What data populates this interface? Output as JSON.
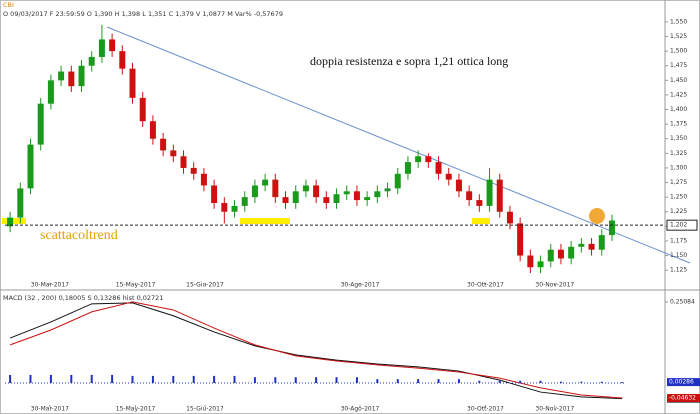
{
  "chart_data": [
    {
      "type": "candlestick",
      "symbol": "CBI",
      "info": "O 09/03/2017 F 23:59:59 O 1,390 H 1,398 L 1,351 C 1,379 V 1,0877 M Var% -0,57679",
      "annotations": [
        "doppia resistenza e sopra 1,21 ottica long",
        "scattacoltrend"
      ],
      "up_color": "#1a9a1a",
      "down_color": "#d01010",
      "candles": [
        [
          1.2,
          1.225,
          1.19,
          1.215
        ],
        [
          1.215,
          1.275,
          1.205,
          1.265
        ],
        [
          1.265,
          1.35,
          1.255,
          1.34
        ],
        [
          1.34,
          1.42,
          1.33,
          1.41
        ],
        [
          1.41,
          1.46,
          1.4,
          1.45
        ],
        [
          1.45,
          1.475,
          1.44,
          1.465
        ],
        [
          1.465,
          1.475,
          1.43,
          1.44
        ],
        [
          1.44,
          1.485,
          1.43,
          1.475
        ],
        [
          1.475,
          1.5,
          1.465,
          1.49
        ],
        [
          1.49,
          1.545,
          1.48,
          1.52
        ],
        [
          1.52,
          1.53,
          1.49,
          1.5
        ],
        [
          1.5,
          1.51,
          1.46,
          1.47
        ],
        [
          1.47,
          1.48,
          1.41,
          1.42
        ],
        [
          1.42,
          1.43,
          1.37,
          1.38
        ],
        [
          1.38,
          1.39,
          1.34,
          1.35
        ],
        [
          1.35,
          1.36,
          1.32,
          1.33
        ],
        [
          1.33,
          1.34,
          1.31,
          1.32
        ],
        [
          1.32,
          1.33,
          1.29,
          1.3
        ],
        [
          1.3,
          1.31,
          1.28,
          1.29
        ],
        [
          1.29,
          1.3,
          1.26,
          1.27
        ],
        [
          1.27,
          1.28,
          1.23,
          1.24
        ],
        [
          1.24,
          1.25,
          1.205,
          1.225
        ],
        [
          1.225,
          1.245,
          1.215,
          1.235
        ],
        [
          1.235,
          1.26,
          1.225,
          1.25
        ],
        [
          1.25,
          1.28,
          1.24,
          1.27
        ],
        [
          1.27,
          1.29,
          1.26,
          1.28
        ],
        [
          1.28,
          1.29,
          1.24,
          1.25
        ],
        [
          1.25,
          1.26,
          1.23,
          1.24
        ],
        [
          1.24,
          1.27,
          1.23,
          1.26
        ],
        [
          1.26,
          1.28,
          1.25,
          1.27
        ],
        [
          1.27,
          1.28,
          1.24,
          1.25
        ],
        [
          1.25,
          1.26,
          1.23,
          1.24
        ],
        [
          1.24,
          1.265,
          1.23,
          1.255
        ],
        [
          1.255,
          1.27,
          1.245,
          1.26
        ],
        [
          1.26,
          1.27,
          1.235,
          1.245
        ],
        [
          1.245,
          1.26,
          1.235,
          1.25
        ],
        [
          1.25,
          1.27,
          1.24,
          1.26
        ],
        [
          1.26,
          1.275,
          1.25,
          1.265
        ],
        [
          1.265,
          1.3,
          1.255,
          1.29
        ],
        [
          1.29,
          1.32,
          1.28,
          1.31
        ],
        [
          1.31,
          1.33,
          1.3,
          1.32
        ],
        [
          1.32,
          1.325,
          1.3,
          1.31
        ],
        [
          1.31,
          1.32,
          1.28,
          1.29
        ],
        [
          1.29,
          1.3,
          1.27,
          1.28
        ],
        [
          1.28,
          1.29,
          1.25,
          1.26
        ],
        [
          1.26,
          1.27,
          1.235,
          1.245
        ],
        [
          1.245,
          1.255,
          1.225,
          1.235
        ],
        [
          1.235,
          1.3,
          1.225,
          1.28
        ],
        [
          1.28,
          1.29,
          1.215,
          1.225
        ],
        [
          1.225,
          1.235,
          1.195,
          1.205
        ],
        [
          1.205,
          1.215,
          1.14,
          1.15
        ],
        [
          1.15,
          1.16,
          1.12,
          1.13
        ],
        [
          1.13,
          1.15,
          1.12,
          1.14
        ],
        [
          1.14,
          1.17,
          1.13,
          1.16
        ],
        [
          1.16,
          1.17,
          1.135,
          1.145
        ],
        [
          1.145,
          1.175,
          1.135,
          1.165
        ],
        [
          1.165,
          1.18,
          1.155,
          1.17
        ],
        [
          1.17,
          1.18,
          1.15,
          1.16
        ],
        [
          1.16,
          1.195,
          1.15,
          1.185
        ],
        [
          1.185,
          1.22,
          1.175,
          1.21
        ]
      ],
      "xlim": [
        -0.5,
        64.2
      ],
      "xticks": [
        {
          "value": 3.9,
          "label": "30-Mar-2017"
        },
        {
          "value": 12.3,
          "label": "15-May-2017"
        },
        {
          "value": 19.1,
          "label": "15-Giu-2017"
        },
        {
          "value": 34.3,
          "label": "30-Ago-2017"
        },
        {
          "value": 46.6,
          "label": "30-Ott-2017"
        },
        {
          "value": 53.4,
          "label": "30-Nov-2017"
        }
      ],
      "ylim": [
        1.103,
        1.567
      ],
      "yticks": [
        {
          "value": 1.125,
          "label": "1,125"
        },
        {
          "value": 1.15,
          "label": "1,150"
        },
        {
          "value": 1.175,
          "label": "1,175"
        },
        {
          "value": 1.2,
          "label": "1,200"
        },
        {
          "value": 1.225,
          "label": "1,225"
        },
        {
          "value": 1.25,
          "label": "1,250"
        },
        {
          "value": 1.275,
          "label": "1,275"
        },
        {
          "value": 1.3,
          "label": "1,300"
        },
        {
          "value": 1.325,
          "label": "1,325"
        },
        {
          "value": 1.35,
          "label": "1,350"
        },
        {
          "value": 1.375,
          "label": "1,375"
        },
        {
          "value": 1.4,
          "label": "1,400"
        },
        {
          "value": 1.425,
          "label": "1,425"
        },
        {
          "value": 1.45,
          "label": "1,450"
        },
        {
          "value": 1.475,
          "label": "1,475"
        },
        {
          "value": 1.5,
          "label": "1,500"
        },
        {
          "value": 1.525,
          "label": "1,525"
        },
        {
          "value": 1.55,
          "label": "1,550"
        }
      ],
      "level": {
        "value": 1.202,
        "label": "1,202"
      }
    },
    {
      "type": "line",
      "header": "MACD (32 , 200) 0,18005 S 0,13286 hist 0,02721",
      "x": [
        0,
        4,
        8,
        12,
        16,
        20,
        24,
        28,
        32,
        36,
        40,
        44,
        48,
        52,
        56,
        60
      ],
      "series": [
        {
          "color": "#111111",
          "values": [
            0.139,
            0.189,
            0.245,
            0.248,
            0.208,
            0.158,
            0.115,
            0.087,
            0.071,
            0.059,
            0.05,
            0.037,
            0.009,
            -0.028,
            -0.043,
            -0.0482
          ],
          "end_label": "-0,04820"
        },
        {
          "color": "#cc1111",
          "values": [
            0.118,
            0.164,
            0.22,
            0.251,
            0.226,
            0.17,
            0.118,
            0.084,
            0.068,
            0.056,
            0.046,
            0.034,
            0.015,
            -0.015,
            -0.037,
            -0.04632
          ],
          "end_label": "-0,04632"
        },
        {
          "kind": "bar",
          "color": "#2030c0",
          "x": [
            0,
            2,
            4,
            6,
            8,
            10,
            12,
            14,
            16,
            18,
            20,
            22,
            24,
            26,
            28,
            30,
            32,
            34,
            36,
            38,
            40,
            42,
            44,
            46,
            48,
            50,
            52,
            54,
            56,
            58,
            60
          ],
          "values": [
            0.025,
            0.025,
            0.025,
            0.025,
            0.025,
            0.025,
            0.022,
            0.022,
            0.022,
            0.022,
            0.022,
            0.022,
            0.018,
            0.018,
            0.018,
            0.018,
            0.018,
            0.018,
            0.012,
            0.012,
            0.012,
            0.012,
            0.012,
            0.007,
            0.007,
            0.007,
            0.007,
            0.004,
            0.004,
            0.004,
            0.00286
          ],
          "end_label": "0,00286"
        }
      ],
      "xlim": [
        -0.5,
        64.2
      ],
      "xticks": [
        {
          "value": 3.9,
          "label": "30-Mar-2017"
        },
        {
          "value": 12.3,
          "label": "15-May-2017"
        },
        {
          "value": 19.1,
          "label": "15-Giu-2017"
        },
        {
          "value": 34.3,
          "label": "30-Ago-2017"
        },
        {
          "value": 46.6,
          "label": "30-Ott-2017"
        },
        {
          "value": 53.4,
          "label": "30-Nov-2017"
        }
      ],
      "ylim": [
        -0.068,
        0.263
      ],
      "yticks": [
        {
          "value": 0.25084,
          "label": "0,25084"
        }
      ]
    }
  ]
}
